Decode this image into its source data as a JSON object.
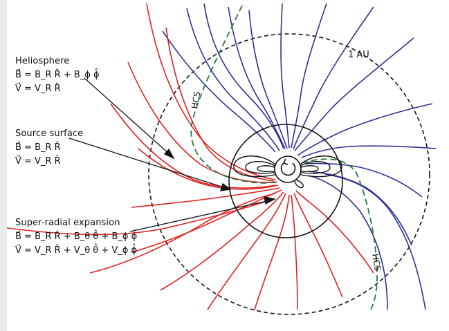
{
  "labels": {
    "heliosphere": "Heliosphere",
    "source_surface": "Source surface",
    "super_radial": "Super-radial expansion",
    "au": "1 AU",
    "hcs": "HCS"
  },
  "equations": {
    "helio_b": "B⃗ = B_R R̂ + B_ϕ ϕ̂",
    "helio_v": "V⃗ = V_R R̂",
    "source_b": "B⃗ = B_R R̂",
    "source_v": "V⃗ = V_R R̂",
    "super_b": "B⃗ = B_R R̂ + B_θ θ̂ + B_ϕ ϕ̂",
    "super_v": "V⃗ = V_R R̂ + V_θ θ̂ + V_ϕ ϕ̂"
  },
  "colors": {
    "outward_field": "#e02020",
    "inward_field": "#2b2f9a",
    "current_sheet": "#1f7a3a",
    "boundary": "#111111"
  },
  "icons": {
    "rotation": "rotation-arrow-icon"
  }
}
